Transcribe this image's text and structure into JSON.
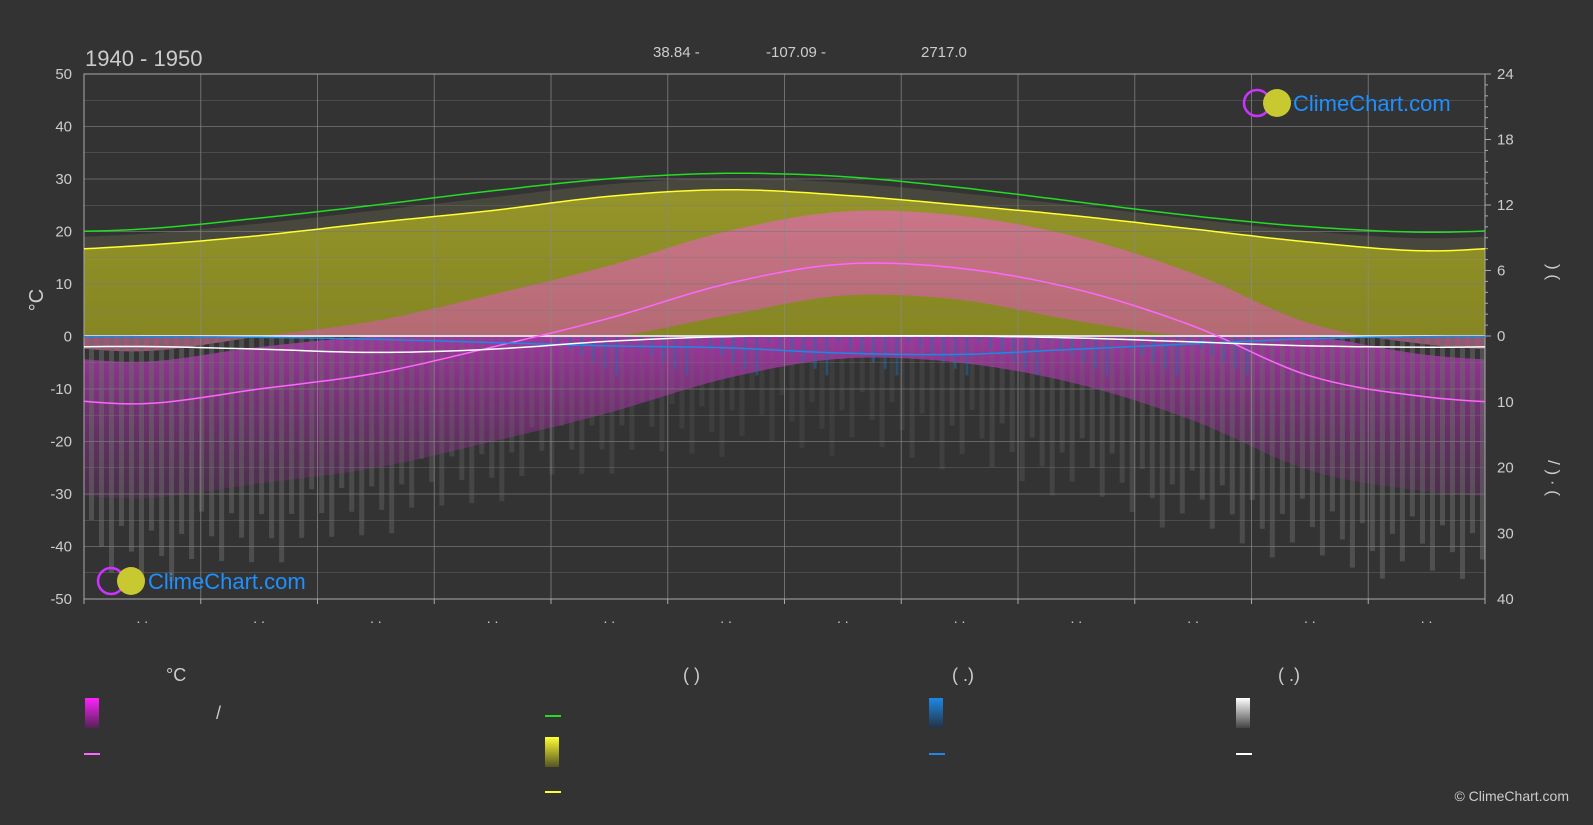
{
  "header": {
    "period": "1940 - 1950",
    "lat": "38.84 -",
    "lon": "-107.09 -",
    "elev": "2717.0"
  },
  "brand": {
    "name": "ClimeChart.com",
    "copyright": "© ClimeChart.com"
  },
  "axes": {
    "left_unit": "°C",
    "left_ticks": [
      "50",
      "40",
      "30",
      "20",
      "10",
      "0",
      "-10",
      "-20",
      "-30",
      "-40",
      "-50"
    ],
    "right_ticks_top": [
      "24",
      "18",
      "12",
      "6",
      "0"
    ],
    "right_ticks_bottom": [
      "10",
      "20",
      "30",
      "40"
    ],
    "right_label_top": ")        (",
    "right_label_bottom": "/       )    ·  (",
    "month_labels": [
      ". .",
      ". .",
      ". .",
      ". .",
      ". .",
      ". .",
      ". .",
      ". .",
      ". .",
      ". .",
      ". .",
      ". ."
    ]
  },
  "legend": {
    "col1_head": "°C",
    "col1_row1": "/",
    "col2_head": "(            )",
    "col3_head": "(    .)",
    "col4_head": "(    .)"
  },
  "colors": {
    "background": "#333333",
    "grid": "#666666",
    "daylight": "#22dd22",
    "sunshine": "#ffff33",
    "temp_mean": "#ff66ff",
    "temp_band": "#cc33cc",
    "rain": "#1e88e5",
    "snow": "#ffffff",
    "brand": "#1e90ff"
  },
  "chart_data": {
    "type": "area",
    "title": "",
    "xlabel": "",
    "ylabel": "°C",
    "ylim": [
      -50,
      50
    ],
    "y2lim_top": [
      0,
      24
    ],
    "y2lim_bottom": [
      0,
      40
    ],
    "x": [
      0.5,
      1.5,
      2.5,
      3.5,
      4.5,
      5.5,
      6.5,
      7.5,
      8.5,
      9.5,
      10.5,
      11.5
    ],
    "series": [
      {
        "key": "daylight",
        "axis": "right-top",
        "values": [
          9.8,
          10.8,
          12.0,
          13.3,
          14.4,
          14.9,
          14.6,
          13.6,
          12.3,
          11.0,
          10.0,
          9.5
        ]
      },
      {
        "key": "sunshine",
        "axis": "right-top",
        "values": [
          8.3,
          9.2,
          10.4,
          11.5,
          12.8,
          13.4,
          12.9,
          12.0,
          11.0,
          9.8,
          8.6,
          7.8
        ]
      },
      {
        "key": "temp_mean",
        "axis": "left",
        "values": [
          -12.8,
          -10.0,
          -7.0,
          -2.0,
          3.5,
          10.0,
          13.8,
          13.0,
          9.0,
          2.0,
          -7.5,
          -11.5
        ]
      },
      {
        "key": "rain",
        "axis": "right-bottom",
        "values": [
          0.1,
          0.2,
          0.5,
          1.0,
          1.5,
          1.8,
          2.6,
          2.8,
          2.0,
          1.2,
          0.4,
          0.1
        ]
      },
      {
        "key": "snow",
        "axis": "right-bottom",
        "values": [
          1.6,
          2.0,
          2.5,
          2.0,
          0.8,
          0.1,
          0.0,
          0.0,
          0.3,
          0.9,
          1.5,
          1.7
        ]
      }
    ]
  }
}
